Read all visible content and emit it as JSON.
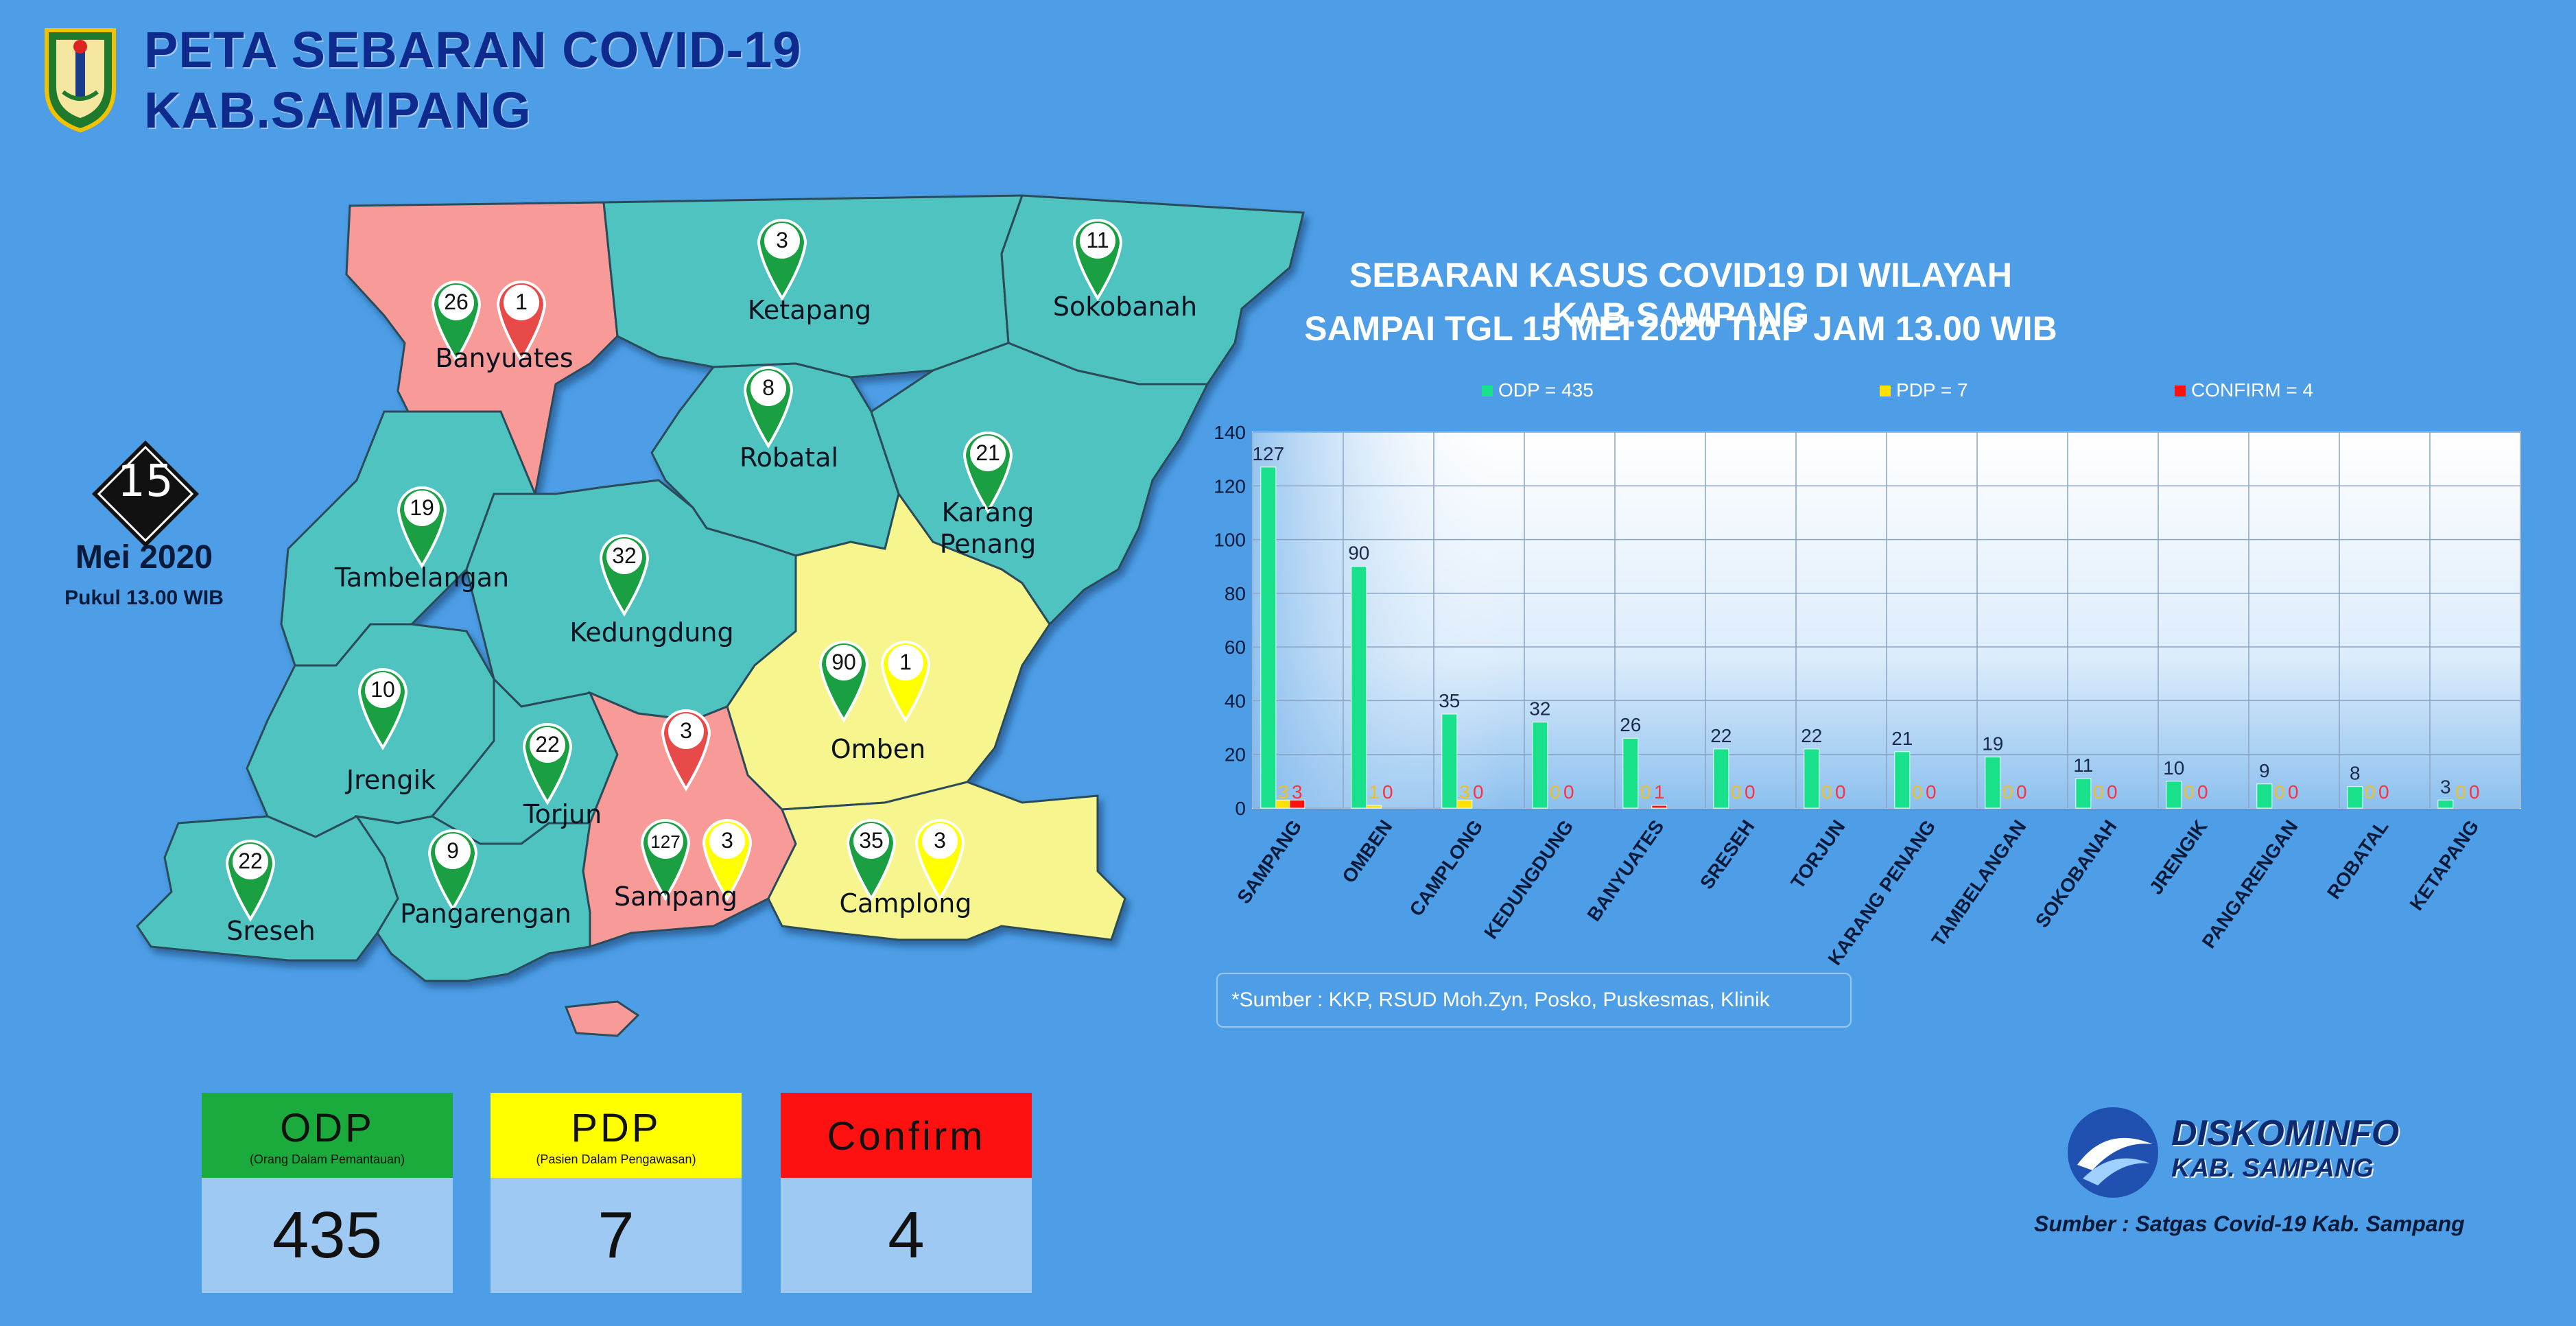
{
  "header": {
    "title_line1": "PETA SEBARAN COVID-19",
    "title_line2": "KAB.SAMPANG",
    "logo": "kabupaten-crest"
  },
  "date": {
    "day": "15",
    "month_year": "Mei 2020",
    "time": "Pukul 13.00 WIB"
  },
  "map": {
    "colors": {
      "green_region": "#4fc3c0",
      "red_region": "#f79a98",
      "yellow_region": "#f7f58e",
      "odp_pin": "#1aa043",
      "pdp_pin": "#ffff00",
      "confirm_pin": "#e84a4a"
    },
    "districts": [
      {
        "name": "Banyuates",
        "status": "red",
        "pins": [
          {
            "type": "odp",
            "value": "26"
          },
          {
            "type": "confirm",
            "value": "1"
          }
        ]
      },
      {
        "name": "Ketapang",
        "status": "green",
        "pins": [
          {
            "type": "odp",
            "value": "3"
          }
        ]
      },
      {
        "name": "Sokobanah",
        "status": "green",
        "pins": [
          {
            "type": "odp",
            "value": "11"
          }
        ]
      },
      {
        "name": "Robatal",
        "status": "green",
        "pins": [
          {
            "type": "odp",
            "value": "8"
          }
        ]
      },
      {
        "name": "Karang Penang",
        "label_line1": "Karang",
        "label_line2": "Penang",
        "status": "green",
        "pins": [
          {
            "type": "odp",
            "value": "21"
          }
        ]
      },
      {
        "name": "Tambelangan",
        "status": "green",
        "pins": [
          {
            "type": "odp",
            "value": "19"
          }
        ]
      },
      {
        "name": "Kedungdung",
        "status": "green",
        "pins": [
          {
            "type": "odp",
            "value": "32"
          }
        ]
      },
      {
        "name": "Omben",
        "status": "yellow",
        "pins": [
          {
            "type": "odp",
            "value": "90"
          },
          {
            "type": "pdp",
            "value": "1"
          }
        ]
      },
      {
        "name": "Jrengik",
        "status": "green",
        "pins": [
          {
            "type": "odp",
            "value": "10"
          }
        ]
      },
      {
        "name": "Torjun",
        "status": "green",
        "pins": [
          {
            "type": "odp",
            "value": "22"
          }
        ]
      },
      {
        "name": "Sampang",
        "status": "red",
        "pins": [
          {
            "type": "confirm",
            "value": "3"
          },
          {
            "type": "odp",
            "value": "127"
          },
          {
            "type": "pdp",
            "value": "3"
          }
        ]
      },
      {
        "name": "Camplong",
        "status": "yellow",
        "pins": [
          {
            "type": "odp",
            "value": "35"
          },
          {
            "type": "pdp",
            "value": "3"
          }
        ]
      },
      {
        "name": "Sreseh",
        "status": "green",
        "pins": [
          {
            "type": "odp",
            "value": "22"
          }
        ]
      },
      {
        "name": "Pangarengan",
        "status": "green",
        "pins": [
          {
            "type": "odp",
            "value": "9"
          }
        ]
      }
    ]
  },
  "summary": {
    "odp": {
      "label": "ODP",
      "sub": "(Orang Dalam Pemantauan)",
      "value": "435",
      "color": "#1aab3c"
    },
    "pdp": {
      "label": "PDP",
      "sub": "(Pasien Dalam Pengawasan)",
      "value": "7",
      "color": "#ffff00"
    },
    "confirm": {
      "label": "Confirm",
      "value": "4",
      "color": "#ff1111"
    }
  },
  "chart_title_line1": "SEBARAN KASUS COVID19 DI WILAYAH KAB.SAMPANG",
  "chart_title_line2": "SAMPAI TGL 15 MEI 2020 TIAP JAM 13.00 WIB",
  "chart_data": {
    "type": "bar",
    "categories": [
      "SAMPANG",
      "OMBEN",
      "CAMPLONG",
      "KEDUNGDUNG",
      "BANYUATES",
      "SRESEH",
      "TORJUN",
      "KARANG PENANG",
      "TAMBELANGAN",
      "SOKOBANAH",
      "JRENGIK",
      "PANGARENGAN",
      "ROBATAL",
      "KETAPANG"
    ],
    "series": [
      {
        "name": "ODP = 435",
        "color": "#19e08a",
        "label_color": "#1a2a4a",
        "values": [
          127,
          90,
          35,
          32,
          26,
          22,
          22,
          21,
          19,
          11,
          10,
          9,
          8,
          3
        ]
      },
      {
        "name": "PDP = 7",
        "color": "#ffe000",
        "label_color": "#f0c020",
        "values": [
          3,
          1,
          3,
          0,
          0,
          0,
          0,
          0,
          0,
          0,
          0,
          0,
          0,
          0
        ]
      },
      {
        "name": "CONFIRM = 4",
        "color": "#ff1010",
        "label_color": "#ff3040",
        "values": [
          3,
          0,
          0,
          0,
          1,
          0,
          0,
          0,
          0,
          0,
          0,
          0,
          0,
          0
        ]
      }
    ],
    "ylim": [
      0,
      140
    ],
    "yticks": [
      0,
      20,
      40,
      60,
      80,
      100,
      120,
      140
    ],
    "grid": true,
    "legend": "top"
  },
  "chart_source": "*Sumber  : KKP, RSUD  Moh.Zyn, Posko, Puskesmas, Klinik",
  "footer": {
    "org_name": "DISKOMINFO",
    "org_sub": "KAB. SAMPANG",
    "source": "Sumber : Satgas Covid-19 Kab. Sampang"
  }
}
